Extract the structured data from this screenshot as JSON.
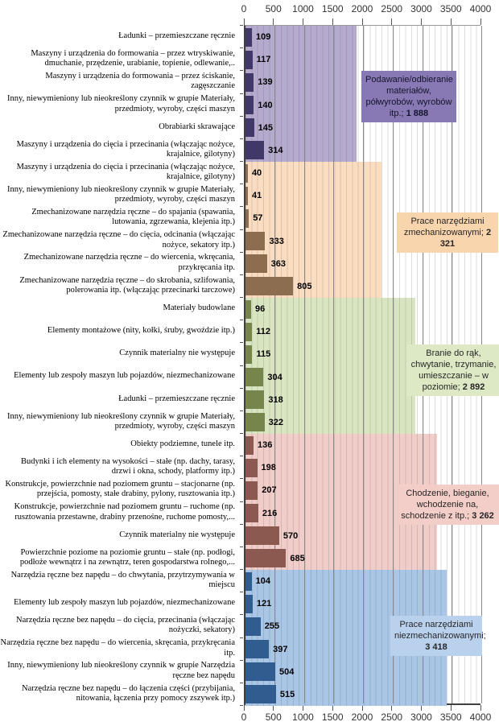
{
  "chart_data": {
    "type": "bar",
    "orientation": "horizontal",
    "title": "",
    "xlabel": "",
    "ylabel": "",
    "xlim": [
      0,
      4000
    ],
    "grid": "minor every 100, major every 500",
    "legend_position": "none",
    "axis_ticks": [
      "0",
      "500",
      "1000",
      "1500",
      "2000",
      "2500",
      "3000",
      "3500",
      "4000"
    ],
    "groups": [
      {
        "group_label": "Podawanie/odbieranie materiałów, półwyrobów, wyrobów itp.",
        "group_total": 1888,
        "group_total_text": "1 888",
        "band_color": "#b5aacd",
        "bar_color": "#413768",
        "box_color": "#8879b4",
        "bars": [
          {
            "label": "Ładunki – przemieszczane ręcznie",
            "value": 109
          },
          {
            "label": "Maszyny i urządzenia do formowania – przez wtryskiwanie, dmuchanie, przędzenie, urabianie, topienie, odlewanie,..",
            "value": 117
          },
          {
            "label": "Maszyny i urządzenia do formowania – przez ściskanie, zagęszczanie",
            "value": 139
          },
          {
            "label": "Inny, niewymieniony lub nieokreślony czynnik w grupie Materiały, przedmioty, wyroby, części maszyn",
            "value": 140
          },
          {
            "label": "Obrabiarki skrawające",
            "value": 145
          },
          {
            "label": "Maszyny i urządzenia do cięcia i przecinania (włączając nożyce, krajalnice, gilotyny)",
            "value": 314
          }
        ]
      },
      {
        "group_label": "Prace narzędziami zmechanizowanymi",
        "group_total": 2321,
        "group_total_text": "2 321",
        "band_color": "#fadcc0",
        "bar_color": "#8c6d50",
        "box_color": "#f9d5ae",
        "bars": [
          {
            "label": "Maszyny i urządzenia do cięcia i przecinania (włączając nożyce, krajalnice, gilotyny)",
            "value": 40
          },
          {
            "label": "Inny, niewymieniony lub nieokreślony czynnik w grupie Materiały, przedmioty, wyroby, części maszyn",
            "value": 41
          },
          {
            "label": "Zmechanizowane narzędzia ręczne – do spajania (spawania, lutowania, zgrzewania, klejenia itp.)",
            "value": 57
          },
          {
            "label": "Zmechanizowane narzędzia ręczne – do cięcia, odcinania (włączając nożyce, sekatory itp.)",
            "value": 333
          },
          {
            "label": "Zmechanizowane narzędzia ręczne – do wiercenia, wkręcania, przykręcania itp.",
            "value": 363
          },
          {
            "label": "Zmechanizowane narzędzia ręczne – do skrobania, szlifowania, polerowania itp.  (włączając przecinarki tarczowe)",
            "value": 805
          }
        ]
      },
      {
        "group_label": "Branie do rąk, chwytanie, trzymanie, umieszczanie – w poziomie",
        "group_total": 2892,
        "group_total_text": "2 892",
        "band_color": "#d9e5c0",
        "bar_color": "#76854b",
        "box_color": "#dde9c5",
        "bars": [
          {
            "label": "Materiały budowlane",
            "value": 96
          },
          {
            "label": "Elementy montażowe (nity, kołki, śruby, gwoździe itp.)",
            "value": 112
          },
          {
            "label": "Czynnik materialny nie występuje",
            "value": 115
          },
          {
            "label": "Elementy lub zespoły maszyn lub pojazdów, niezmechanizowane",
            "value": 304
          },
          {
            "label": "Ładunki – przemieszczane ręcznie",
            "value": 318
          },
          {
            "label": "Inny, niewymieniony lub nieokreślony czynnik w grupie Materiały, przedmioty, wyroby, części maszyn",
            "value": 322
          }
        ]
      },
      {
        "group_label": "Chodzenie, bieganie, wchodzenie na, schodzenie z itp.",
        "group_total": 3262,
        "group_total_text": "3 262",
        "band_color": "#f0cdc8",
        "bar_color": "#8b5950",
        "box_color": "#f3cdc7",
        "bars": [
          {
            "label": "Obiekty podziemne, tunele itp.",
            "value": 136
          },
          {
            "label": "Budynki i ich elementy na wysokości – stałe (np. dachy, tarasy, drzwi i okna, schody, platformy itp.)",
            "value": 198
          },
          {
            "label": "Konstrukcje, powierzchnie nad poziomem gruntu – stacjonarne (np. przejścia, pomosty, stałe drabiny, pylony, rusztowania itp.)",
            "value": 207
          },
          {
            "label": "Konstrukcje, powierzchnie nad poziomem gruntu – ruchome (np. rusztowania przestawne, drabiny przenośne, ruchome pomosty,...",
            "value": 216
          },
          {
            "label": "Czynnik materialny nie występuje",
            "value": 570
          },
          {
            "label": "Powierzchnie poziome na poziomie gruntu – stałe (np. podłogi, podłoże wewnątrz i na zewnątrz, teren gospodarstwa rolnego,...",
            "value": 685
          }
        ]
      },
      {
        "group_label": "Prace narzędziami niezmechanizowanymi",
        "group_total": 3418,
        "group_total_text": "3 418",
        "band_color": "#a9c6e7",
        "bar_color": "#305c8f",
        "box_color": "#bad1ee",
        "bars": [
          {
            "label": "Narzędzia ręczne bez napędu – do chwytania, przytrzymywania w miejscu",
            "value": 104
          },
          {
            "label": "Elementy lub zespoły maszyn lub pojazdów, niezmechanizowane",
            "value": 121
          },
          {
            "label": "Narzędzia ręczne bez napędu – do cięcia, przecinania (włączając nożyczki, sekatory)",
            "value": 255
          },
          {
            "label": "Narzędzia ręczne bez napędu – do wiercenia, skręcania, przykręcania itp.",
            "value": 397
          },
          {
            "label": "Inny, niewymieniony lub nieokreślony czynnik w grupie Narzędzia ręczne bez napędu",
            "value": 504
          },
          {
            "label": "Narzędzia ręczne bez napędu – do łączenia części (przybijania, nitowania, łączenia przy pomocy zszywek itp.)",
            "value": 515
          }
        ]
      }
    ]
  }
}
